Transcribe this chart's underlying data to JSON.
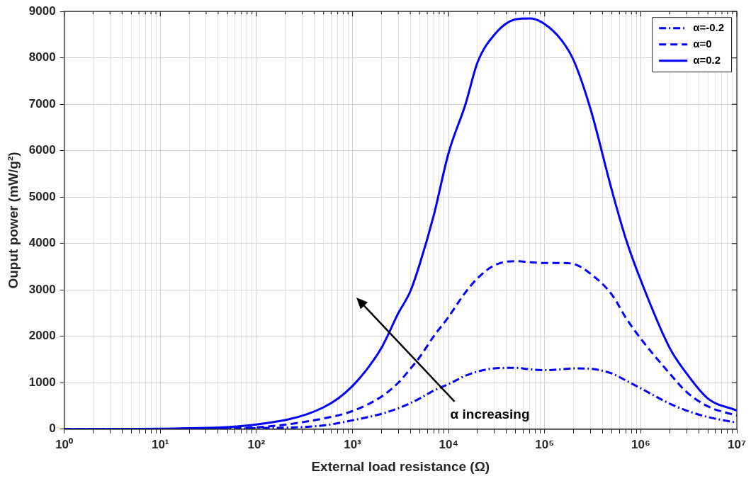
{
  "chart_data": {
    "type": "line",
    "xlabel": "External load resistance (Ω)",
    "ylabel": "Ouput power (mW/g²)",
    "log": "x",
    "x": [
      1,
      10,
      100,
      500,
      1000,
      2000,
      3000,
      4000,
      5000,
      7000,
      10000,
      15000,
      20000,
      30000,
      50000,
      70000,
      100000,
      150000,
      200000,
      300000,
      500000,
      700000,
      1000000,
      2000000,
      3000000,
      5000000,
      10000000
    ],
    "series": [
      {
        "name": "α=-0.2",
        "color": "#0000ff",
        "line_style": "dashdot",
        "values": [
          0,
          0,
          20,
          80,
          190,
          330,
          450,
          560,
          660,
          830,
          970,
          1150,
          1240,
          1310,
          1320,
          1290,
          1270,
          1290,
          1310,
          1300,
          1200,
          1050,
          880,
          550,
          400,
          260,
          140
        ]
      },
      {
        "name": "α=0",
        "color": "#0000ff",
        "line_style": "dashed",
        "values": [
          0,
          0,
          40,
          230,
          390,
          700,
          1000,
          1300,
          1550,
          2000,
          2420,
          2950,
          3250,
          3530,
          3620,
          3600,
          3580,
          3580,
          3560,
          3350,
          2900,
          2400,
          1950,
          1200,
          800,
          490,
          290
        ]
      },
      {
        "name": "α=0.2",
        "color": "#0000ff",
        "line_style": "solid",
        "values": [
          0,
          10,
          100,
          470,
          930,
          1750,
          2500,
          2970,
          3550,
          4600,
          5950,
          7000,
          7900,
          8500,
          8830,
          8850,
          8730,
          8380,
          7950,
          6900,
          5150,
          4100,
          3210,
          1750,
          1200,
          660,
          400
        ]
      }
    ],
    "xlim": [
      1,
      10000000
    ],
    "xticks": [
      {
        "value": 1,
        "label": "10⁰"
      },
      {
        "value": 2,
        "label": null
      },
      {
        "value": 3,
        "label": null
      },
      {
        "value": 4,
        "label": null
      },
      {
        "value": 5,
        "label": null
      },
      {
        "value": 6,
        "label": null
      },
      {
        "value": 7,
        "label": null
      },
      {
        "value": 8,
        "label": null
      },
      {
        "value": 9,
        "label": null
      },
      {
        "value": 10,
        "label": "10¹"
      },
      {
        "value": 20,
        "label": null
      },
      {
        "value": 30,
        "label": null
      },
      {
        "value": 40,
        "label": null
      },
      {
        "value": 50,
        "label": null
      },
      {
        "value": 60,
        "label": null
      },
      {
        "value": 70,
        "label": null
      },
      {
        "value": 80,
        "label": null
      },
      {
        "value": 90,
        "label": null
      },
      {
        "value": 100,
        "label": "10²"
      },
      {
        "value": 200,
        "label": null
      },
      {
        "value": 300,
        "label": null
      },
      {
        "value": 400,
        "label": null
      },
      {
        "value": 500,
        "label": null
      },
      {
        "value": 600,
        "label": null
      },
      {
        "value": 700,
        "label": null
      },
      {
        "value": 800,
        "label": null
      },
      {
        "value": 900,
        "label": null
      },
      {
        "value": 1000,
        "label": "10³"
      },
      {
        "value": 2000,
        "label": null
      },
      {
        "value": 3000,
        "label": null
      },
      {
        "value": 4000,
        "label": null
      },
      {
        "value": 5000,
        "label": null
      },
      {
        "value": 6000,
        "label": null
      },
      {
        "value": 7000,
        "label": null
      },
      {
        "value": 8000,
        "label": null
      },
      {
        "value": 9000,
        "label": null
      },
      {
        "value": 10000,
        "label": "10⁴"
      },
      {
        "value": 20000,
        "label": null
      },
      {
        "value": 30000,
        "label": null
      },
      {
        "value": 40000,
        "label": null
      },
      {
        "value": 50000,
        "label": null
      },
      {
        "value": 60000,
        "label": null
      },
      {
        "value": 70000,
        "label": null
      },
      {
        "value": 80000,
        "label": null
      },
      {
        "value": 90000,
        "label": null
      },
      {
        "value": 100000,
        "label": "10⁵"
      },
      {
        "value": 200000,
        "label": null
      },
      {
        "value": 300000,
        "label": null
      },
      {
        "value": 400000,
        "label": null
      },
      {
        "value": 500000,
        "label": null
      },
      {
        "value": 600000,
        "label": null
      },
      {
        "value": 700000,
        "label": null
      },
      {
        "value": 800000,
        "label": null
      },
      {
        "value": 900000,
        "label": null
      },
      {
        "value": 1000000,
        "label": "10⁶"
      },
      {
        "value": 2000000,
        "label": null
      },
      {
        "value": 3000000,
        "label": null
      },
      {
        "value": 4000000,
        "label": null
      },
      {
        "value": 5000000,
        "label": null
      },
      {
        "value": 6000000,
        "label": null
      },
      {
        "value": 7000000,
        "label": null
      },
      {
        "value": 8000000,
        "label": null
      },
      {
        "value": 9000000,
        "label": null
      },
      {
        "value": 10000000,
        "label": "10⁷"
      }
    ],
    "ylim": [
      0,
      9000
    ],
    "yticks": [
      0,
      1000,
      2000,
      3000,
      4000,
      5000,
      6000,
      7000,
      8000,
      9000
    ],
    "grid": true,
    "legend": "top right",
    "marker": "none",
    "annotations": [
      "α increasing"
    ]
  }
}
